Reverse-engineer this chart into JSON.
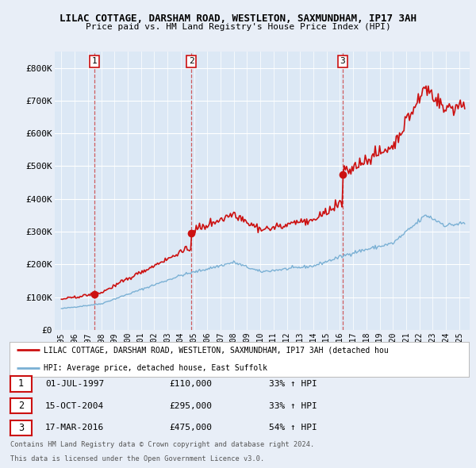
{
  "title1": "LILAC COTTAGE, DARSHAM ROAD, WESTLETON, SAXMUNDHAM, IP17 3AH",
  "title2": "Price paid vs. HM Land Registry's House Price Index (HPI)",
  "background_color": "#e8eef7",
  "plot_bg": "#dce8f5",
  "grid_color": "#ffffff",
  "sale_prices": [
    110000,
    295000,
    475000
  ],
  "sale_year_nums": [
    1997.5,
    2004.79,
    2016.21
  ],
  "sale_labels": [
    "1",
    "2",
    "3"
  ],
  "sale_date_strs": [
    "01-JUL-1997",
    "15-OCT-2004",
    "17-MAR-2016"
  ],
  "sale_price_strs": [
    "£110,000",
    "£295,000",
    "£475,000"
  ],
  "sale_hpi_strs": [
    "33% ↑ HPI",
    "33% ↑ HPI",
    "54% ↑ HPI"
  ],
  "legend_label_red": "LILAC COTTAGE, DARSHAM ROAD, WESTLETON, SAXMUNDHAM, IP17 3AH (detached hou",
  "legend_label_blue": "HPI: Average price, detached house, East Suffolk",
  "footer1": "Contains HM Land Registry data © Crown copyright and database right 2024.",
  "footer2": "This data is licensed under the Open Government Licence v3.0.",
  "ylim": [
    0,
    850000
  ],
  "yticks": [
    0,
    100000,
    200000,
    300000,
    400000,
    500000,
    600000,
    700000,
    800000
  ],
  "ytick_labels": [
    "£0",
    "£100K",
    "£200K",
    "£300K",
    "£400K",
    "£500K",
    "£600K",
    "£700K",
    "£800K"
  ],
  "red_color": "#cc1111",
  "blue_color": "#7ab0d4",
  "dashed_color": "#cc4444"
}
